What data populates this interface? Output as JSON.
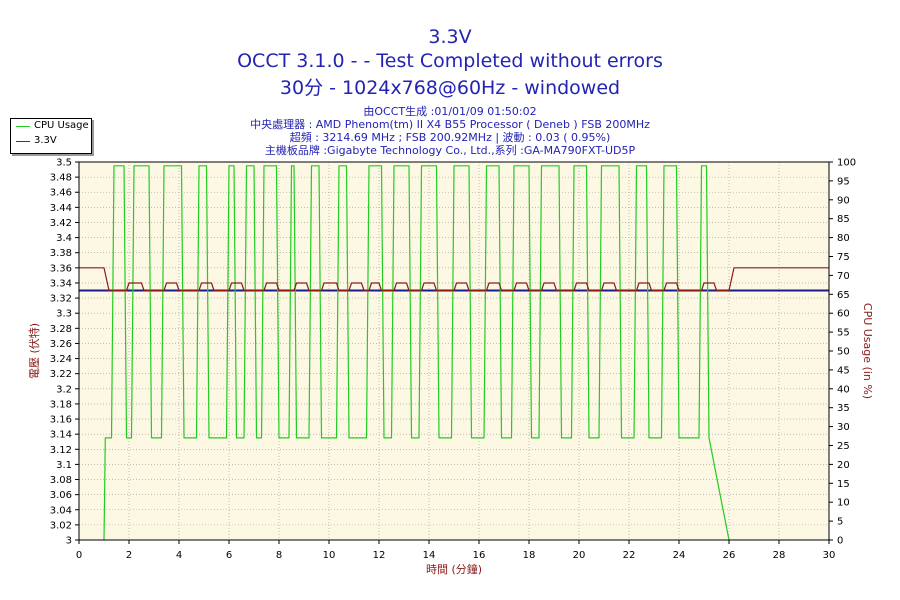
{
  "chart_data": {
    "type": "line",
    "title": "3.3V",
    "subtitle_line1": "OCCT 3.1.0 -  - Test Completed without errors",
    "subtitle_line2": "30分 - 1024x768@60Hz - windowed",
    "info_lines": [
      "由OCCT生成 :01/01/09 01:50:02",
      "中央處理器 : AMD Phenom(tm) II X4 B55 Processor ( Deneb ) FSB 200MHz",
      "超頻 : 3214.69 MHz ; FSB 200.92MHz | 波動 : 0.03 ( 0.95%)",
      "主機板品牌 :Gigabyte Technology Co., Ltd.,系列 :GA-MA790FXT-UD5P"
    ],
    "xlabel": "時間 (分鐘)",
    "ylabel_left": "電壓 (伏特)",
    "ylabel_right": "CPU Usage (in %)",
    "xlim": [
      0,
      30
    ],
    "ylim_left": [
      3.0,
      3.5
    ],
    "ylim_right": [
      0,
      100
    ],
    "x_ticks": [
      "0",
      "2",
      "4",
      "6",
      "8",
      "10",
      "12",
      "14",
      "16",
      "18",
      "20",
      "22",
      "24",
      "26",
      "28",
      "30"
    ],
    "y_ticks_left": [
      "3",
      "3.02",
      "3.04",
      "3.06",
      "3.08",
      "3.1",
      "3.12",
      "3.14",
      "3.16",
      "3.18",
      "3.2",
      "3.22",
      "3.24",
      "3.26",
      "3.28",
      "3.3",
      "3.32",
      "3.34",
      "3.36",
      "3.38",
      "3.4",
      "3.42",
      "3.44",
      "3.46",
      "3.48",
      "3.5"
    ],
    "y_ticks_right": [
      "0",
      "5",
      "10",
      "15",
      "20",
      "25",
      "30",
      "35",
      "40",
      "45",
      "50",
      "55",
      "60",
      "65",
      "70",
      "75",
      "80",
      "85",
      "90",
      "95",
      "100"
    ],
    "grid": true,
    "legend_position": "top-left",
    "series": [
      {
        "name": "CPU Usage",
        "axis": "right",
        "color": "#22cc22",
        "x": [
          0.0,
          0.9,
          1.0,
          1.05,
          1.1,
          1.3,
          1.4,
          1.8,
          1.9,
          2.1,
          2.2,
          2.8,
          2.9,
          3.3,
          3.4,
          4.1,
          4.2,
          4.7,
          4.8,
          5.1,
          5.2,
          5.9,
          6.0,
          6.2,
          6.3,
          6.6,
          6.7,
          7.0,
          7.1,
          7.3,
          7.4,
          7.9,
          8.0,
          8.4,
          8.5,
          8.6,
          8.7,
          9.2,
          9.3,
          9.6,
          9.7,
          10.3,
          10.4,
          10.7,
          10.8,
          11.5,
          11.6,
          12.1,
          12.2,
          12.5,
          12.6,
          13.2,
          13.3,
          13.6,
          13.7,
          14.3,
          14.4,
          14.9,
          15.0,
          15.6,
          15.7,
          16.2,
          16.3,
          16.8,
          16.9,
          17.3,
          17.4,
          18.0,
          18.1,
          18.4,
          18.5,
          19.2,
          19.3,
          19.7,
          19.8,
          20.3,
          20.4,
          20.8,
          20.9,
          21.6,
          21.7,
          22.2,
          22.3,
          22.7,
          22.8,
          23.3,
          23.4,
          23.9,
          24.0,
          24.8,
          24.9,
          25.1,
          25.2,
          26.0,
          26.05,
          30.0
        ],
        "y": [
          null,
          null,
          0,
          27,
          27,
          27,
          99,
          99,
          27,
          27,
          99,
          99,
          27,
          27,
          99,
          99,
          27,
          27,
          99,
          99,
          27,
          27,
          99,
          99,
          27,
          27,
          99,
          99,
          27,
          27,
          99,
          99,
          27,
          27,
          99,
          99,
          27,
          27,
          99,
          99,
          27,
          27,
          99,
          99,
          27,
          27,
          99,
          99,
          27,
          27,
          99,
          99,
          27,
          27,
          99,
          99,
          27,
          27,
          99,
          99,
          27,
          27,
          99,
          99,
          27,
          27,
          99,
          99,
          27,
          27,
          99,
          99,
          27,
          27,
          99,
          99,
          27,
          27,
          99,
          99,
          27,
          27,
          99,
          99,
          27,
          27,
          99,
          99,
          27,
          27,
          99,
          99,
          27,
          0,
          null,
          null
        ]
      },
      {
        "name": "3.3V",
        "axis": "left",
        "color": "#8b1a1a",
        "x": [
          0.0,
          1.0,
          1.2,
          1.4,
          1.9,
          2.0,
          2.5,
          2.6,
          3.4,
          3.5,
          3.9,
          4.0,
          4.8,
          4.9,
          5.3,
          5.4,
          6.0,
          6.1,
          6.5,
          6.6,
          7.4,
          7.5,
          7.9,
          8.0,
          8.6,
          8.7,
          9.1,
          9.2,
          9.7,
          9.8,
          10.3,
          10.4,
          10.8,
          10.9,
          11.3,
          11.4,
          11.6,
          11.7,
          12.0,
          12.1,
          12.6,
          12.7,
          13.1,
          13.2,
          13.7,
          13.8,
          14.2,
          14.3,
          15.0,
          15.1,
          15.5,
          15.6,
          16.3,
          16.4,
          16.8,
          16.9,
          17.4,
          17.5,
          17.9,
          18.0,
          18.5,
          18.6,
          19.0,
          19.1,
          19.8,
          19.9,
          20.3,
          20.4,
          20.9,
          21.0,
          21.4,
          21.5,
          22.3,
          22.4,
          22.8,
          22.9,
          23.4,
          23.5,
          23.9,
          24.0,
          24.9,
          25.0,
          25.4,
          25.5,
          26.0,
          26.2,
          30.0
        ],
        "y": [
          3.36,
          3.36,
          3.33,
          3.33,
          3.33,
          3.34,
          3.34,
          3.33,
          3.33,
          3.34,
          3.34,
          3.33,
          3.33,
          3.34,
          3.34,
          3.33,
          3.33,
          3.34,
          3.34,
          3.33,
          3.33,
          3.34,
          3.34,
          3.33,
          3.33,
          3.34,
          3.34,
          3.33,
          3.33,
          3.34,
          3.34,
          3.33,
          3.33,
          3.34,
          3.34,
          3.33,
          3.33,
          3.34,
          3.34,
          3.33,
          3.33,
          3.34,
          3.34,
          3.33,
          3.33,
          3.34,
          3.34,
          3.33,
          3.33,
          3.34,
          3.34,
          3.33,
          3.33,
          3.34,
          3.34,
          3.33,
          3.33,
          3.34,
          3.34,
          3.33,
          3.33,
          3.34,
          3.34,
          3.33,
          3.33,
          3.34,
          3.34,
          3.33,
          3.33,
          3.34,
          3.34,
          3.33,
          3.33,
          3.34,
          3.34,
          3.33,
          3.33,
          3.34,
          3.34,
          3.33,
          3.33,
          3.34,
          3.34,
          3.33,
          3.33,
          3.36,
          3.36
        ]
      }
    ],
    "reference_line": {
      "axis": "left",
      "y": 3.33,
      "color": "#1a1a8b"
    }
  },
  "colors": {
    "title": "#2323b4",
    "plot_background": "#fdf8e4",
    "grid": "#9a9a9a",
    "left_axis_label": "#8b1a1a",
    "right_axis_label": "#8b1a1a",
    "xlabel": "#8b1a1a"
  }
}
